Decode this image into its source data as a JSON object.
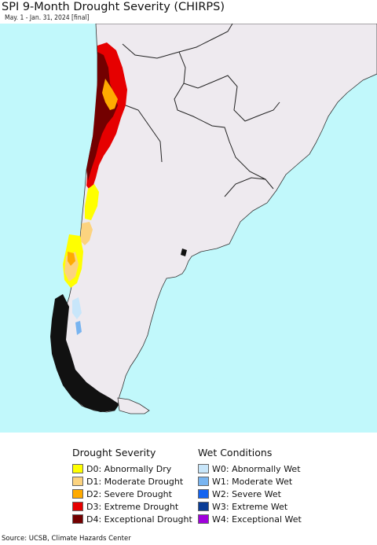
{
  "title": "SPI 9-Month Drought Severity (CHIRPS)",
  "subtitle": "May. 1 - Jan. 31, 2024 [final]",
  "colors": {
    "ocean": "#c1f8fb",
    "land": "#eeeaef",
    "border": "#222222"
  },
  "legend": {
    "drought_heading": "Drought Severity",
    "drought_items": [
      {
        "label": "D0: Abnormally Dry",
        "color": "#ffff00"
      },
      {
        "label": "D1: Moderate Drought",
        "color": "#fcd37f"
      },
      {
        "label": "D2: Severe Drought",
        "color": "#ffaa00"
      },
      {
        "label": "D3: Extreme Drought",
        "color": "#e60000"
      },
      {
        "label": "D4: Exceptional Drought",
        "color": "#730000"
      }
    ],
    "wet_heading": "Wet Conditions",
    "wet_items": [
      {
        "label": "W0: Abnormally Wet",
        "color": "#c8e6fa"
      },
      {
        "label": "W1: Moderate Wet",
        "color": "#78b4f0"
      },
      {
        "label": "W2: Severe Wet",
        "color": "#1464f0"
      },
      {
        "label": "W3: Extreme Wet",
        "color": "#0a3c96"
      },
      {
        "label": "W4: Exceptional Wet",
        "color": "#a000dc"
      }
    ]
  },
  "source": "Source: UCSB, Climate Hazards Center"
}
